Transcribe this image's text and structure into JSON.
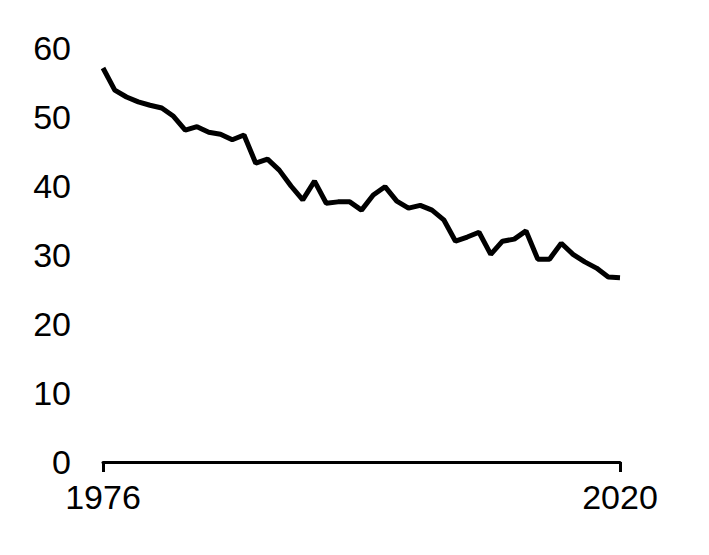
{
  "chart_data": {
    "type": "line",
    "x": [
      1976,
      1977,
      1978,
      1979,
      1980,
      1981,
      1982,
      1983,
      1984,
      1985,
      1986,
      1987,
      1988,
      1989,
      1990,
      1991,
      1992,
      1993,
      1994,
      1995,
      1996,
      1997,
      1998,
      1999,
      2000,
      2001,
      2002,
      2003,
      2004,
      2005,
      2006,
      2007,
      2008,
      2009,
      2010,
      2011,
      2012,
      2013,
      2014,
      2015,
      2016,
      2017,
      2018,
      2019,
      2020
    ],
    "values": [
      57.1,
      53.9,
      52.9,
      52.2,
      51.7,
      51.3,
      50.1,
      48.1,
      48.6,
      47.8,
      47.5,
      46.7,
      47.4,
      43.3,
      43.9,
      42.3,
      40.0,
      38.0,
      40.7,
      37.5,
      37.7,
      37.7,
      36.5,
      38.7,
      39.9,
      37.8,
      36.8,
      37.2,
      36.5,
      35.1,
      32.0,
      32.6,
      33.3,
      30.1,
      32.0,
      32.3,
      33.5,
      29.4,
      29.4,
      31.7,
      30.1,
      29.0,
      28.1,
      26.8,
      26.7
    ],
    "color": "#000000",
    "xlim": [
      1976,
      2020
    ],
    "xticks": [
      1976,
      2020
    ],
    "ylim": [
      0,
      60
    ],
    "yticks": [
      0,
      10,
      20,
      30,
      40,
      50,
      60
    ],
    "grid": false
  }
}
